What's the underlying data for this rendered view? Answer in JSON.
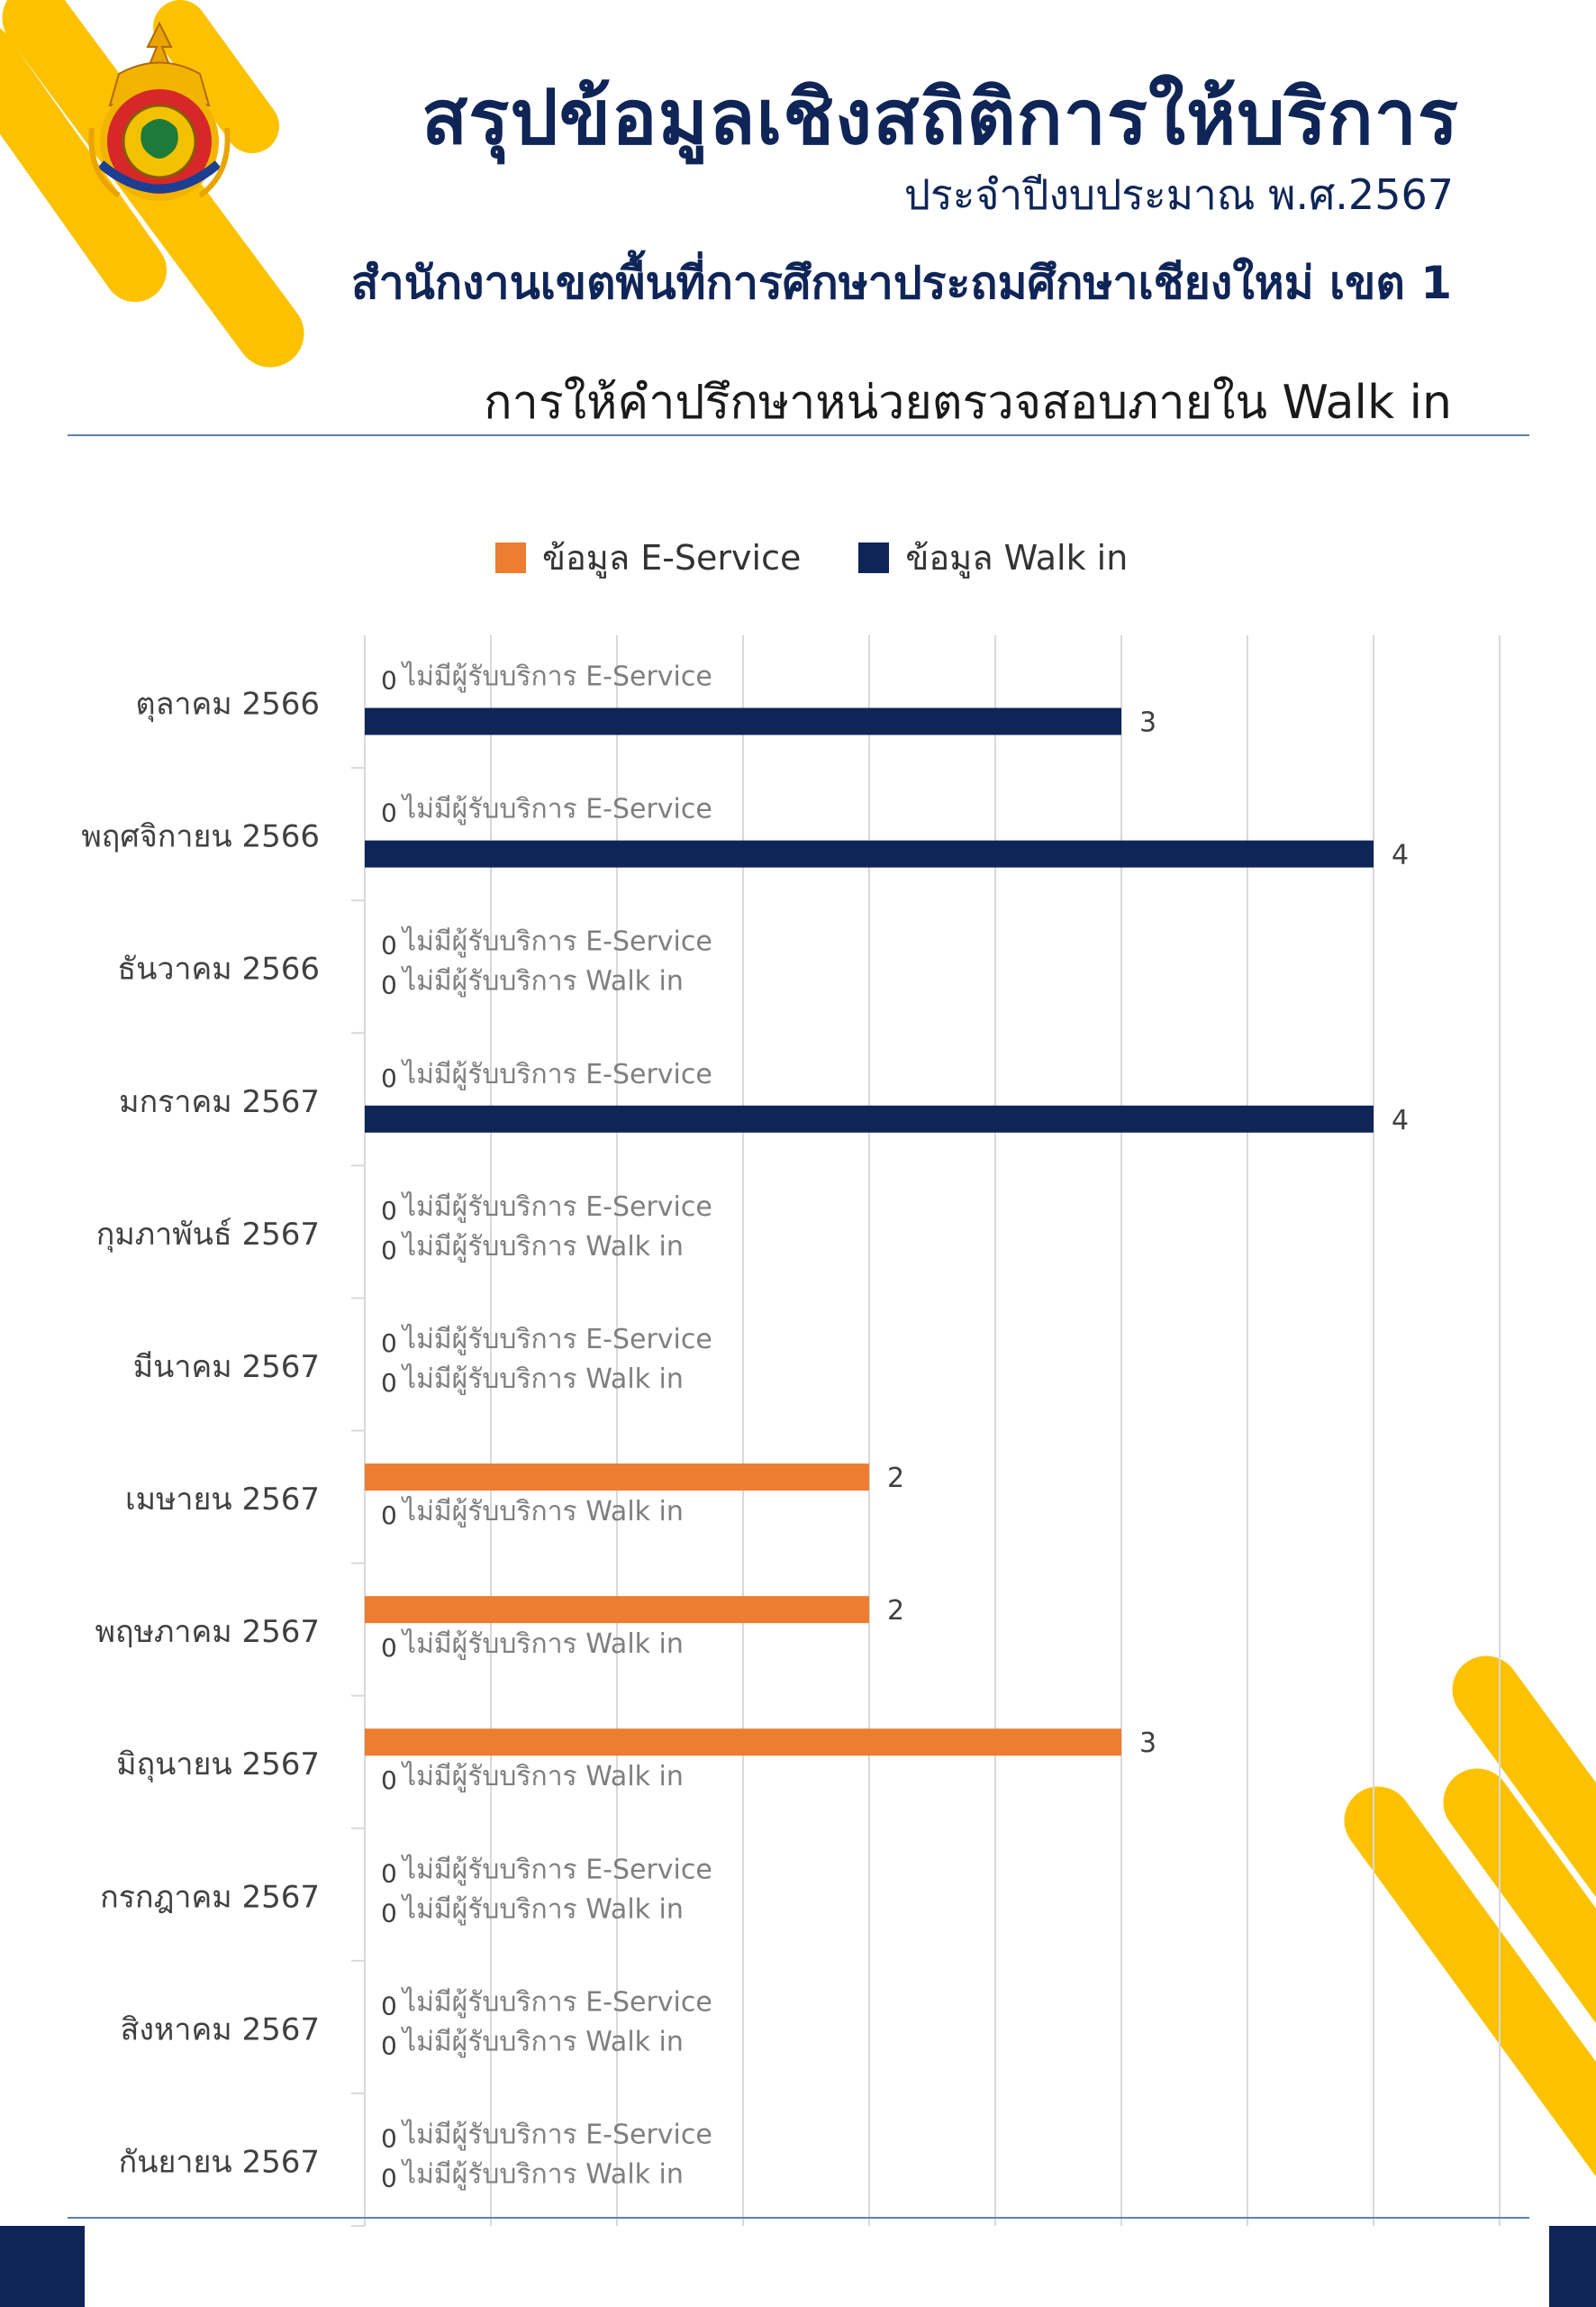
{
  "header": {
    "title": "สรุปข้อมูลเชิงสถิติการให้บริการ",
    "fiscal_year": "ประจำปีงบประมาณ พ.ศ.2567",
    "office": "สำนักงานเขตพื้นที่การศึกษาประถมศึกษาเชียงใหม่ เขต 1",
    "subtitle": "การให้คำปรึกษาหน่วยตรวจสอบภายใน Walk in"
  },
  "colors": {
    "navy": "#0f2557",
    "e_service": "#ed7d31",
    "walk_in": "#0f2557",
    "gold": "#fcc200",
    "label_gray": "#7f7f7f"
  },
  "chart_data": {
    "type": "bar",
    "orientation": "horizontal",
    "categories": [
      "ตุลาคม 2566",
      "พฤศจิกายน 2566",
      "ธันวาคม 2566",
      "มกราคม 2567",
      "กุมภาพันธ์ 2567",
      "มีนาคม 2567",
      "เมษายน 2567",
      "พฤษภาคม 2567",
      "มิถุนายน 2567",
      "กรกฎาคม 2567",
      "สิงหาคม 2567",
      "กันยายน 2567"
    ],
    "series": [
      {
        "name": "ข้อมูล E-Service",
        "color": "#ed7d31",
        "values": [
          0,
          0,
          0,
          0,
          0,
          0,
          2,
          2,
          3,
          0,
          0,
          0
        ],
        "zero_label": "ไม่มีผู้รับบริการ E-Service"
      },
      {
        "name": "ข้อมูล Walk in",
        "color": "#0f2557",
        "values": [
          3,
          4,
          0,
          4,
          0,
          0,
          0,
          0,
          0,
          0,
          0,
          0
        ],
        "zero_label": "ไม่มีผู้รับบริการ Walk in"
      }
    ],
    "xlim": [
      0,
      4.5
    ],
    "grid": true,
    "legend": "top-center"
  }
}
